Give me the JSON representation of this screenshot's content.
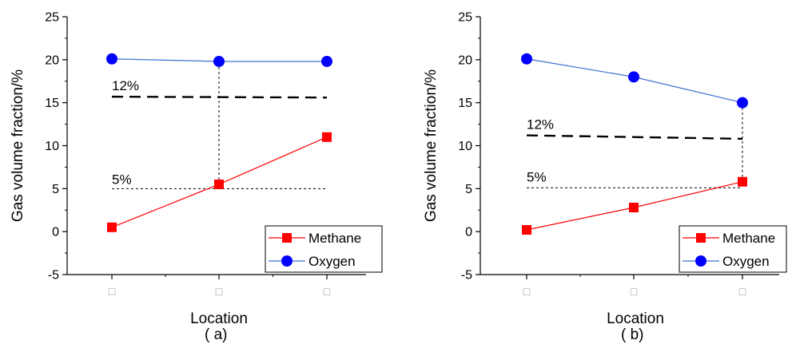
{
  "figure": {
    "panels_caption": [
      "( a)",
      "( b)"
    ]
  },
  "colors": {
    "methane": "#ff0000",
    "oxygen": "#0000ff",
    "methane_line": "#ff0000",
    "oxygen_line": "#3f6fd0",
    "axis": "#000000",
    "category_glyph": "#9a9a9a"
  },
  "chart_data": [
    {
      "type": "line",
      "panel": "(a)",
      "xlabel": "Location",
      "ylabel": "Gas volume fraction/%",
      "categories": [
        "□",
        "□",
        "□"
      ],
      "ylim": [
        -5,
        25
      ],
      "yticks": [
        -5,
        0,
        5,
        10,
        15,
        20,
        25
      ],
      "grid": false,
      "legend_position": "bottom-right",
      "series": [
        {
          "name": "Methane",
          "marker": "square",
          "values": [
            0.5,
            5.5,
            11.0
          ]
        },
        {
          "name": "Oxygen",
          "marker": "circle",
          "values": [
            20.1,
            19.8,
            19.8
          ]
        }
      ],
      "annotations": [
        {
          "text": "12%",
          "style": "dashed",
          "y": [
            15.7,
            15.6
          ]
        },
        {
          "text": "5%",
          "style": "dotted",
          "y": [
            5.0,
            5.0
          ]
        }
      ],
      "guide_line": {
        "category_index": 1,
        "from": 5.5,
        "to": 19.8
      }
    },
    {
      "type": "line",
      "panel": "(b)",
      "xlabel": "Location",
      "ylabel": "Gas volume fraction/%",
      "categories": [
        "□",
        "□",
        "□"
      ],
      "ylim": [
        -5,
        25
      ],
      "yticks": [
        -5,
        0,
        5,
        10,
        15,
        20,
        25
      ],
      "grid": false,
      "legend_position": "bottom-right",
      "series": [
        {
          "name": "Methane",
          "marker": "square",
          "values": [
            0.2,
            2.8,
            5.8
          ]
        },
        {
          "name": "Oxygen",
          "marker": "circle",
          "values": [
            20.1,
            18.0,
            15.0
          ]
        }
      ],
      "annotations": [
        {
          "text": "12%",
          "style": "dashed",
          "y": [
            11.2,
            10.8
          ]
        },
        {
          "text": "5%",
          "style": "dotted",
          "y": [
            5.1,
            5.1
          ]
        }
      ],
      "guide_line": {
        "category_index": 2,
        "from": 5.8,
        "to": 15.0
      }
    }
  ]
}
